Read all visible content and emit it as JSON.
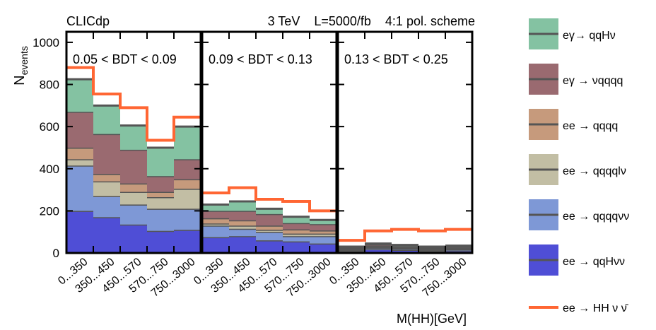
{
  "chart_data": {
    "type": "bar",
    "stacked": true,
    "header": {
      "left": "CLICdp",
      "right": "3 TeV    L=5000/fb    4:1 pol. scheme"
    },
    "ylabel": "N_events",
    "xlabel": "M(HH)[GeV]",
    "ylim": [
      0,
      1050
    ],
    "yticks": [
      0,
      200,
      400,
      600,
      800,
      1000
    ],
    "categories": [
      "0...350",
      "350...450",
      "450...570",
      "570...750",
      "750...3000"
    ],
    "colors": {
      "ea_qqHnu": "#84c2a2",
      "ea_nuqqqq": "#9a6a70",
      "ee_qqqq": "#c69a7c",
      "ee_qqqqlnu": "#c2bea4",
      "ee_qqqqnunu": "#7e98d6",
      "ee_qqHnunu": "#4f4ed6",
      "signal": "#ff6633",
      "bin_edge": "#555555"
    },
    "legend": [
      {
        "key": "ea_qqHnu",
        "label": "eγ→ qqHν"
      },
      {
        "key": "ea_nuqqqq",
        "label": "eγ → νqqqq"
      },
      {
        "key": "ee_qqqq",
        "label": "ee → qqqq"
      },
      {
        "key": "ee_qqqqlnu",
        "label": "ee → qqqqlν"
      },
      {
        "key": "ee_qqqqnunu",
        "label": "ee → qqqqνν"
      },
      {
        "key": "ee_qqHnunu",
        "label": "ee → qqHνν"
      },
      {
        "key": "signal",
        "label": "ee → HH ν ν̄"
      }
    ],
    "panels": [
      {
        "label": "0.05 < BDT < 0.09",
        "stack": [
          {
            "key": "ee_qqHnunu",
            "values": [
              200,
              170,
              135,
              105,
              110
            ]
          },
          {
            "key": "ee_qqqqnunu",
            "values": [
              215,
              100,
              95,
              105,
              100
            ]
          },
          {
            "key": "ee_qqqqlnu",
            "values": [
              30,
              70,
              60,
              55,
              95
            ]
          },
          {
            "key": "ee_qqqq",
            "values": [
              55,
              35,
              40,
              25,
              45
            ]
          },
          {
            "key": "ea_nuqqqq",
            "values": [
              170,
              190,
              160,
              75,
              95
            ]
          },
          {
            "key": "ea_qqHnu",
            "values": [
              155,
              135,
              115,
              135,
              155
            ]
          }
        ],
        "signal_total": [
          880,
          755,
          690,
          535,
          645
        ]
      },
      {
        "label": "0.09 < BDT < 0.13",
        "stack": [
          {
            "key": "ee_qqHnunu",
            "values": [
              75,
              80,
              60,
              55,
              45
            ]
          },
          {
            "key": "ee_qqqqnunu",
            "values": [
              55,
              35,
              40,
              25,
              35
            ]
          },
          {
            "key": "ee_qqqqlnu",
            "values": [
              10,
              15,
              10,
              12,
              12
            ]
          },
          {
            "key": "ee_qqqq",
            "values": [
              25,
              25,
              20,
              20,
              15
            ]
          },
          {
            "key": "ea_nuqqqq",
            "values": [
              35,
              45,
              55,
              30,
              30
            ]
          },
          {
            "key": "ea_qqHnu",
            "values": [
              30,
              45,
              25,
              30,
              20
            ]
          }
        ],
        "signal_total": [
          285,
          310,
          255,
          245,
          200
        ]
      },
      {
        "label": "0.13 < BDT < 0.25",
        "stack": [
          {
            "key": "ee_qqHnunu",
            "values": [
              10,
              18,
              15,
              10,
              12
            ]
          },
          {
            "key": "ee_qqqqnunu",
            "values": [
              5,
              7,
              6,
              5,
              6
            ]
          },
          {
            "key": "ee_qqqqlnu",
            "values": [
              3,
              4,
              3,
              3,
              3
            ]
          },
          {
            "key": "ee_qqqq",
            "values": [
              4,
              5,
              4,
              4,
              4
            ]
          },
          {
            "key": "ea_nuqqqq",
            "values": [
              4,
              6,
              5,
              4,
              5
            ]
          },
          {
            "key": "ea_qqHnu",
            "values": [
              4,
              5,
              5,
              4,
              5
            ]
          }
        ],
        "signal_total": [
          60,
          105,
          112,
          105,
          112
        ]
      }
    ]
  }
}
